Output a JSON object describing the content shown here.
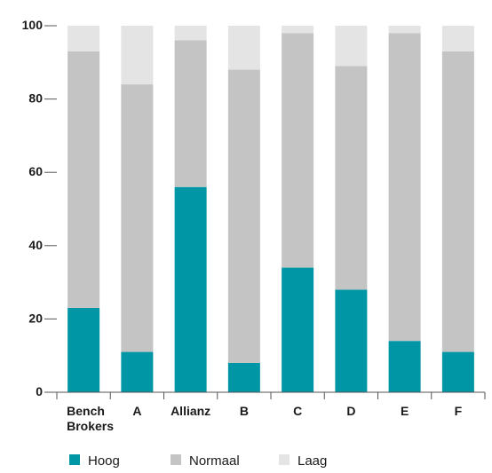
{
  "chart_data": {
    "type": "bar",
    "stacked": true,
    "categories": [
      [
        "Bench",
        "Brokers"
      ],
      [
        "A"
      ],
      [
        "Allianz"
      ],
      [
        "B"
      ],
      [
        "C"
      ],
      [
        "D"
      ],
      [
        "E"
      ],
      [
        "F"
      ]
    ],
    "series": [
      {
        "name": "Hoog",
        "color": "#0096a6",
        "values": [
          23,
          11,
          56,
          8,
          34,
          28,
          14,
          11
        ]
      },
      {
        "name": "Normaal",
        "color": "#c4c4c4",
        "values": [
          70,
          73,
          40,
          80,
          64,
          61,
          84,
          82
        ]
      },
      {
        "name": "Laag",
        "color": "#e4e4e4",
        "values": [
          7,
          16,
          4,
          12,
          2,
          11,
          2,
          7
        ]
      }
    ],
    "yticks": [
      "0",
      "20",
      "40",
      "60",
      "80",
      "100"
    ],
    "ylim": [
      0,
      100
    ],
    "title": "",
    "xlabel": "",
    "ylabel": "",
    "grid": false,
    "legend_position": "bottom"
  }
}
